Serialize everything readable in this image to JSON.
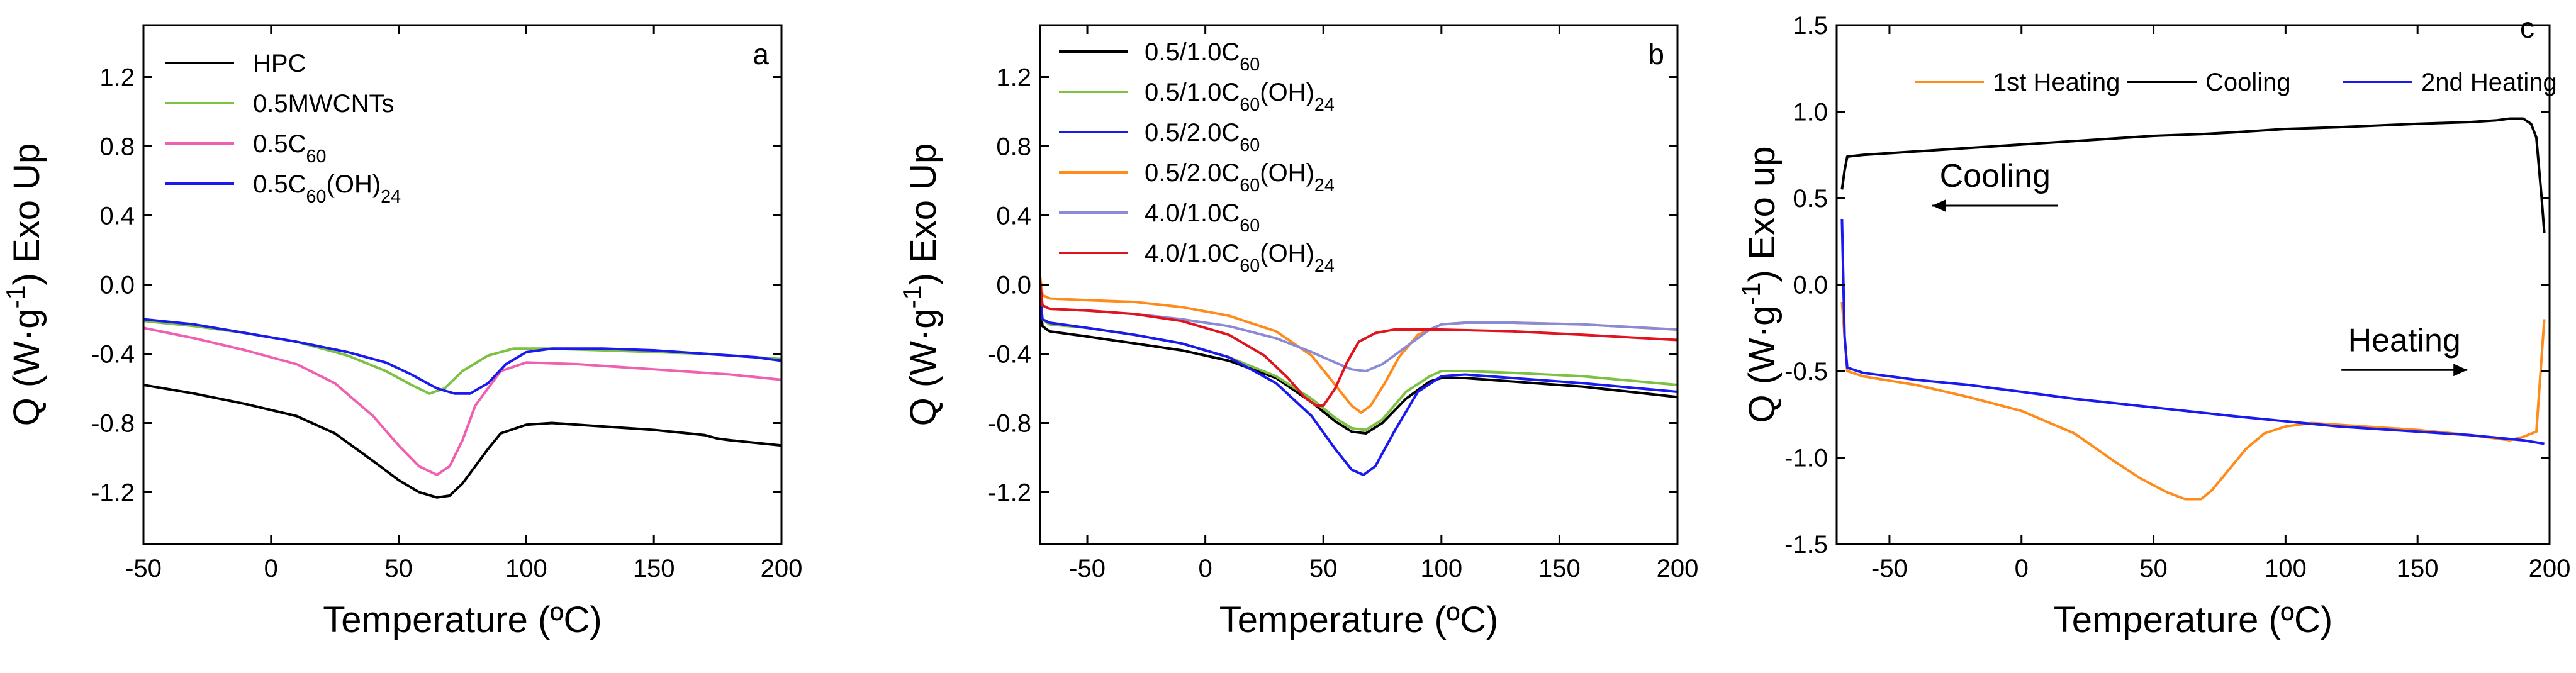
{
  "chart_data": [
    {
      "type": "line",
      "panel_label": "a",
      "xlabel": "Temperature (ºC)",
      "ylabel": "Q (W·g⁻¹) Exo Up",
      "xlim": [
        -50,
        200
      ],
      "ylim": [
        -1.5,
        1.5
      ],
      "xticks": [
        -50,
        0,
        50,
        100,
        150,
        200
      ],
      "yticks": [
        -1.2,
        -0.8,
        -0.4,
        0.0,
        0.4,
        0.8,
        1.2
      ],
      "yticklabels": [
        "-1.2",
        "-0.8",
        "-0.4",
        "0.0",
        "0.4",
        "0.8",
        "1.2"
      ],
      "legend_position": "top-left",
      "grid": false,
      "series": [
        {
          "name": "HPC",
          "color": "#000000",
          "x": [
            -50,
            -30,
            -10,
            10,
            25,
            40,
            50,
            58,
            65,
            70,
            75,
            80,
            85,
            90,
            100,
            110,
            130,
            150,
            170,
            175,
            180,
            200
          ],
          "y": [
            -0.58,
            -0.63,
            -0.69,
            -0.76,
            -0.86,
            -1.02,
            -1.13,
            -1.2,
            -1.23,
            -1.22,
            -1.15,
            -1.05,
            -0.95,
            -0.86,
            -0.81,
            -0.8,
            -0.82,
            -0.84,
            -0.87,
            -0.89,
            -0.9,
            -0.93
          ]
        },
        {
          "name": "0.5MWCNTs",
          "color": "#7cc142",
          "x": [
            -50,
            -30,
            -10,
            10,
            30,
            45,
            55,
            62,
            68,
            75,
            85,
            95,
            110,
            130,
            150,
            170,
            200
          ],
          "y": [
            -0.21,
            -0.24,
            -0.28,
            -0.33,
            -0.41,
            -0.5,
            -0.58,
            -0.63,
            -0.6,
            -0.5,
            -0.41,
            -0.37,
            -0.37,
            -0.38,
            -0.39,
            -0.4,
            -0.43
          ]
        },
        {
          "name": "0.5C₆₀",
          "color": "#f060b0",
          "x": [
            -50,
            -30,
            -10,
            10,
            25,
            40,
            50,
            58,
            65,
            70,
            75,
            80,
            90,
            100,
            120,
            140,
            160,
            180,
            200
          ],
          "y": [
            -0.25,
            -0.31,
            -0.38,
            -0.46,
            -0.57,
            -0.76,
            -0.93,
            -1.05,
            -1.1,
            -1.05,
            -0.9,
            -0.7,
            -0.5,
            -0.45,
            -0.46,
            -0.48,
            -0.5,
            -0.52,
            -0.55
          ]
        },
        {
          "name": "0.5C₆₀(OH)₂₄",
          "color": "#1a1aee",
          "x": [
            -50,
            -30,
            -10,
            10,
            30,
            45,
            55,
            65,
            72,
            78,
            85,
            92,
            100,
            110,
            130,
            150,
            170,
            190,
            200
          ],
          "y": [
            -0.2,
            -0.23,
            -0.28,
            -0.33,
            -0.39,
            -0.45,
            -0.52,
            -0.6,
            -0.63,
            -0.63,
            -0.57,
            -0.46,
            -0.39,
            -0.37,
            -0.37,
            -0.38,
            -0.4,
            -0.42,
            -0.44
          ]
        }
      ]
    },
    {
      "type": "line",
      "panel_label": "b",
      "xlabel": "Temperature (ºC)",
      "ylabel": "Q (W·g⁻¹) Exo Up",
      "xlim": [
        -70,
        200
      ],
      "ylim": [
        -1.5,
        1.5
      ],
      "xticks": [
        -50,
        0,
        50,
        100,
        150,
        200
      ],
      "yticks": [
        -1.2,
        -0.8,
        -0.4,
        0.0,
        0.4,
        0.8,
        1.2
      ],
      "yticklabels": [
        "-1.2",
        "-0.8",
        "-0.4",
        "0.0",
        "0.4",
        "0.8",
        "1.2"
      ],
      "legend_position": "top-left",
      "grid": false,
      "series": [
        {
          "name": "0.5/1.0C₆₀",
          "color": "#000000",
          "x": [
            -70,
            -69,
            -66,
            -50,
            -30,
            -10,
            10,
            30,
            45,
            55,
            62,
            68,
            75,
            85,
            95,
            100,
            110,
            130,
            160,
            200
          ],
          "y": [
            -0.1,
            -0.24,
            -0.27,
            -0.3,
            -0.34,
            -0.38,
            -0.44,
            -0.54,
            -0.68,
            -0.79,
            -0.85,
            -0.86,
            -0.8,
            -0.66,
            -0.56,
            -0.54,
            -0.54,
            -0.56,
            -0.59,
            -0.65
          ]
        },
        {
          "name": "0.5/1.0C₆₀(OH)₂₄",
          "color": "#7cc142",
          "x": [
            -70,
            -69,
            -66,
            -50,
            -30,
            -10,
            10,
            30,
            45,
            55,
            62,
            68,
            75,
            85,
            95,
            100,
            110,
            130,
            160,
            200
          ],
          "y": [
            -0.05,
            -0.2,
            -0.23,
            -0.25,
            -0.29,
            -0.34,
            -0.42,
            -0.53,
            -0.66,
            -0.77,
            -0.83,
            -0.84,
            -0.78,
            -0.62,
            -0.53,
            -0.5,
            -0.5,
            -0.51,
            -0.53,
            -0.58
          ]
        },
        {
          "name": "0.5/2.0C₆₀",
          "color": "#1a1aee",
          "x": [
            -70,
            -69,
            -66,
            -50,
            -30,
            -10,
            10,
            30,
            45,
            55,
            62,
            67,
            72,
            80,
            90,
            100,
            110,
            130,
            160,
            200
          ],
          "y": [
            -0.05,
            -0.2,
            -0.22,
            -0.25,
            -0.29,
            -0.34,
            -0.42,
            -0.57,
            -0.76,
            -0.95,
            -1.07,
            -1.1,
            -1.05,
            -0.85,
            -0.62,
            -0.53,
            -0.52,
            -0.54,
            -0.57,
            -0.62
          ]
        },
        {
          "name": "0.5/2.0C₆₀(OH)₂₄",
          "color": "#ff8c1a",
          "x": [
            -70,
            -69,
            -66,
            -50,
            -30,
            -10,
            10,
            30,
            45,
            55,
            62,
            66,
            70,
            76,
            82,
            90,
            100,
            110,
            130,
            160,
            200
          ],
          "y": [
            0.05,
            -0.06,
            -0.08,
            -0.09,
            -0.1,
            -0.13,
            -0.18,
            -0.27,
            -0.41,
            -0.58,
            -0.7,
            -0.74,
            -0.7,
            -0.57,
            -0.42,
            -0.29,
            -0.23,
            -0.22,
            -0.22,
            -0.23,
            -0.26
          ]
        },
        {
          "name": "4.0/1.0C₆₀",
          "color": "#8a8ad6",
          "x": [
            -70,
            -69,
            -66,
            -50,
            -30,
            -10,
            10,
            30,
            45,
            55,
            62,
            68,
            75,
            85,
            95,
            100,
            110,
            130,
            160,
            200
          ],
          "y": [
            0.0,
            -0.12,
            -0.14,
            -0.15,
            -0.17,
            -0.2,
            -0.24,
            -0.31,
            -0.39,
            -0.45,
            -0.49,
            -0.5,
            -0.46,
            -0.36,
            -0.26,
            -0.23,
            -0.22,
            -0.22,
            -0.23,
            -0.26
          ]
        },
        {
          "name": "4.0/1.0C₆₀(OH)₂₄",
          "color": "#e0141e",
          "x": [
            -70,
            -69,
            -66,
            -50,
            -30,
            -10,
            10,
            25,
            35,
            42,
            47,
            50,
            55,
            60,
            65,
            72,
            80,
            100,
            130,
            160,
            200
          ],
          "y": [
            0.02,
            -0.12,
            -0.14,
            -0.15,
            -0.17,
            -0.21,
            -0.29,
            -0.41,
            -0.54,
            -0.65,
            -0.7,
            -0.7,
            -0.6,
            -0.45,
            -0.33,
            -0.28,
            -0.26,
            -0.26,
            -0.27,
            -0.29,
            -0.32
          ]
        }
      ]
    },
    {
      "type": "line",
      "panel_label": "c",
      "xlabel": "Temperature (ºC)",
      "ylabel": "Q (W·g⁻¹) Exo up",
      "xlim": [
        -70,
        200
      ],
      "ylim": [
        -1.5,
        1.5
      ],
      "xticks": [
        -50,
        0,
        50,
        100,
        150,
        200
      ],
      "yticks": [
        -1.5,
        -1.0,
        -0.5,
        0.0,
        0.5,
        1.0,
        1.5
      ],
      "yticklabels": [
        "-1.5",
        "-1.0",
        "-0.5",
        "0.0",
        "0.5",
        "1.0",
        "1.5"
      ],
      "legend_position": "top",
      "grid": false,
      "annotations": [
        {
          "text": "Cooling",
          "arrow": "left",
          "x": -10,
          "y": 0.5
        },
        {
          "text": "Heating",
          "arrow": "right",
          "x": 145,
          "y": -0.45
        }
      ],
      "series": [
        {
          "name": "1st Heating",
          "color": "#ff8c1a",
          "x": [
            -68,
            -66,
            -60,
            -40,
            -20,
            0,
            20,
            35,
            45,
            55,
            62,
            68,
            72,
            78,
            85,
            92,
            100,
            110,
            130,
            150,
            170,
            180,
            185,
            190,
            195,
            198
          ],
          "y": [
            -0.1,
            -0.5,
            -0.53,
            -0.58,
            -0.65,
            -0.73,
            -0.86,
            -1.02,
            -1.12,
            -1.2,
            -1.24,
            -1.24,
            -1.19,
            -1.08,
            -0.95,
            -0.86,
            -0.82,
            -0.8,
            -0.82,
            -0.84,
            -0.87,
            -0.89,
            -0.9,
            -0.88,
            -0.85,
            -0.2
          ]
        },
        {
          "name": "Cooling",
          "color": "#000000",
          "x": [
            198,
            197,
            195,
            193,
            190,
            185,
            180,
            170,
            150,
            120,
            100,
            80,
            68,
            50,
            20,
            0,
            -20,
            -40,
            -60,
            -66,
            -67,
            -68
          ],
          "y": [
            0.3,
            0.5,
            0.85,
            0.93,
            0.96,
            0.96,
            0.95,
            0.94,
            0.93,
            0.91,
            0.9,
            0.88,
            0.87,
            0.86,
            0.83,
            0.81,
            0.79,
            0.77,
            0.75,
            0.74,
            0.66,
            0.55
          ]
        },
        {
          "name": "2nd Heating",
          "color": "#1a1aee",
          "x": [
            -68,
            -67,
            -66,
            -60,
            -40,
            -20,
            0,
            20,
            50,
            80,
            100,
            120,
            150,
            170,
            190,
            198
          ],
          "y": [
            0.38,
            -0.3,
            -0.48,
            -0.51,
            -0.55,
            -0.58,
            -0.62,
            -0.66,
            -0.71,
            -0.76,
            -0.79,
            -0.82,
            -0.85,
            -0.87,
            -0.9,
            -0.92
          ]
        }
      ]
    }
  ]
}
